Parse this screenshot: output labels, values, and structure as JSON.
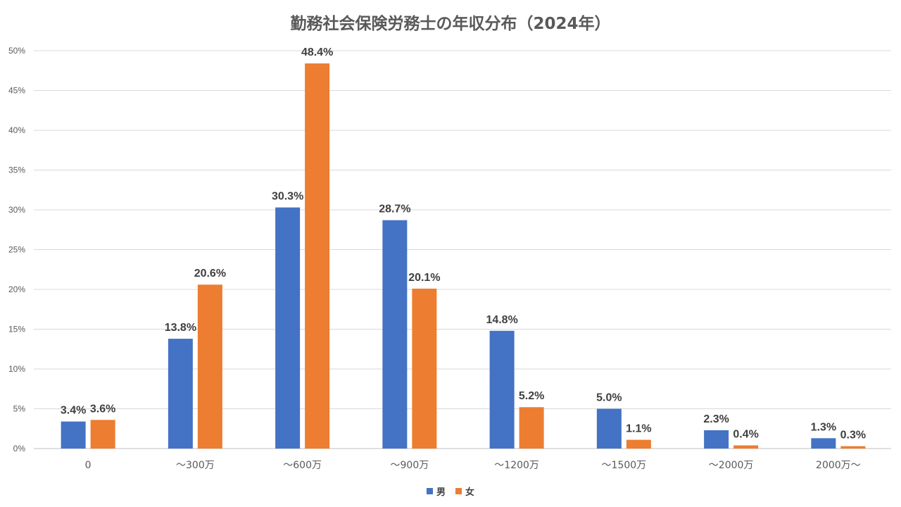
{
  "chart_data": {
    "type": "bar",
    "title": "勤務社会保険労務士の年収分布（2024年）",
    "categories": [
      "0",
      "～300万",
      "～600万",
      "～900万",
      "～1200万",
      "～1500万",
      "～2000万",
      "2000万～"
    ],
    "series": [
      {
        "name": "男",
        "color": "#4472C4",
        "values": [
          3.4,
          13.8,
          30.3,
          28.7,
          14.8,
          5.0,
          2.3,
          1.3
        ],
        "labels": [
          "3.4%",
          "13.8%",
          "30.3%",
          "28.7%",
          "14.8%",
          "5.0%",
          "2.3%",
          "1.3%"
        ]
      },
      {
        "name": "女",
        "color": "#ED7D31",
        "values": [
          3.6,
          20.6,
          48.4,
          20.1,
          5.2,
          1.1,
          0.4,
          0.3
        ],
        "labels": [
          "3.6%",
          "20.6%",
          "48.4%",
          "20.1%",
          "5.2%",
          "1.1%",
          "0.4%",
          "0.3%"
        ]
      }
    ],
    "ylim": [
      0,
      50
    ],
    "yticks": [
      "0%",
      "5%",
      "10%",
      "15%",
      "20%",
      "25%",
      "30%",
      "35%",
      "40%",
      "45%",
      "50%"
    ],
    "grid": true,
    "legend_position": "bottom"
  }
}
